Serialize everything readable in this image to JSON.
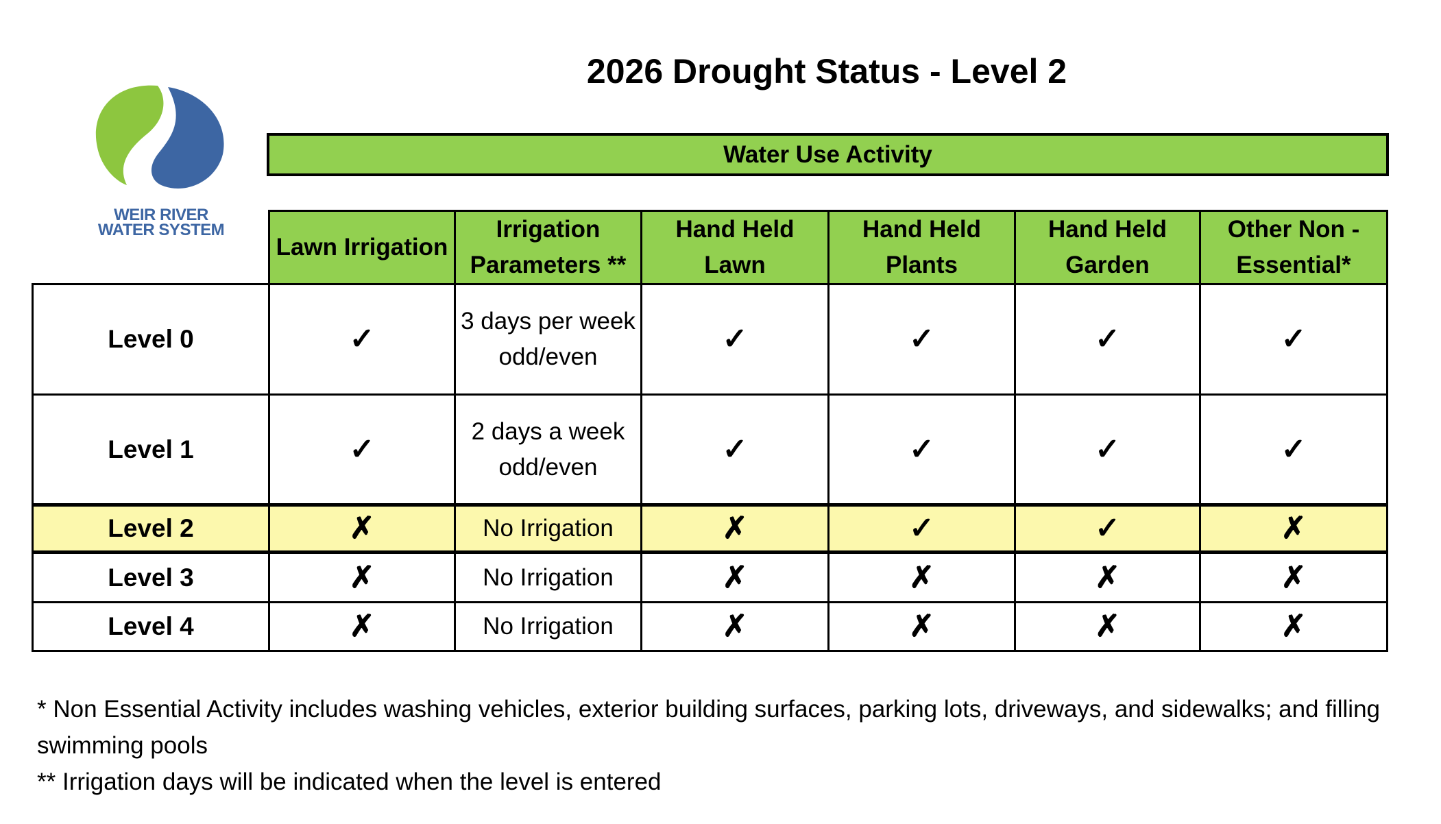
{
  "title": "2026 Drought Status - Level 2",
  "logo": {
    "line1": "WEIR RIVER",
    "line2": "WATER SYSTEM"
  },
  "table": {
    "group_header": "Water Use Activity",
    "columns": [
      "Lawn Irrigation",
      "Irrigation Parameters **",
      "Hand Held Lawn",
      "Hand Held Plants",
      "Hand Held Garden",
      "Other Non - Essential*"
    ],
    "rows": [
      [
        "Level 0",
        "✓",
        "3 days per week odd/even",
        "✓",
        "✓",
        "✓",
        "✓"
      ],
      [
        "Level 1",
        "✓",
        "2 days a week odd/even",
        "✓",
        "✓",
        "✓",
        "✓"
      ],
      [
        "Level 2",
        "✗",
        "No Irrigation",
        "✗",
        "✓",
        "✓",
        "✗"
      ],
      [
        "Level 3",
        "✗",
        "No Irrigation",
        "✗",
        "✗",
        "✗",
        "✗"
      ],
      [
        "Level 4",
        "✗",
        "No Irrigation",
        "✗",
        "✗",
        "✗",
        "✗"
      ]
    ],
    "highlighted_row": 2
  },
  "footnotes": [
    "* Non Essential Activity includes washing vehicles, exterior building surfaces, parking lots, driveways, and sidewalks; and filling swimming pools",
    "** Irrigation days will be indicated when the level is entered"
  ]
}
